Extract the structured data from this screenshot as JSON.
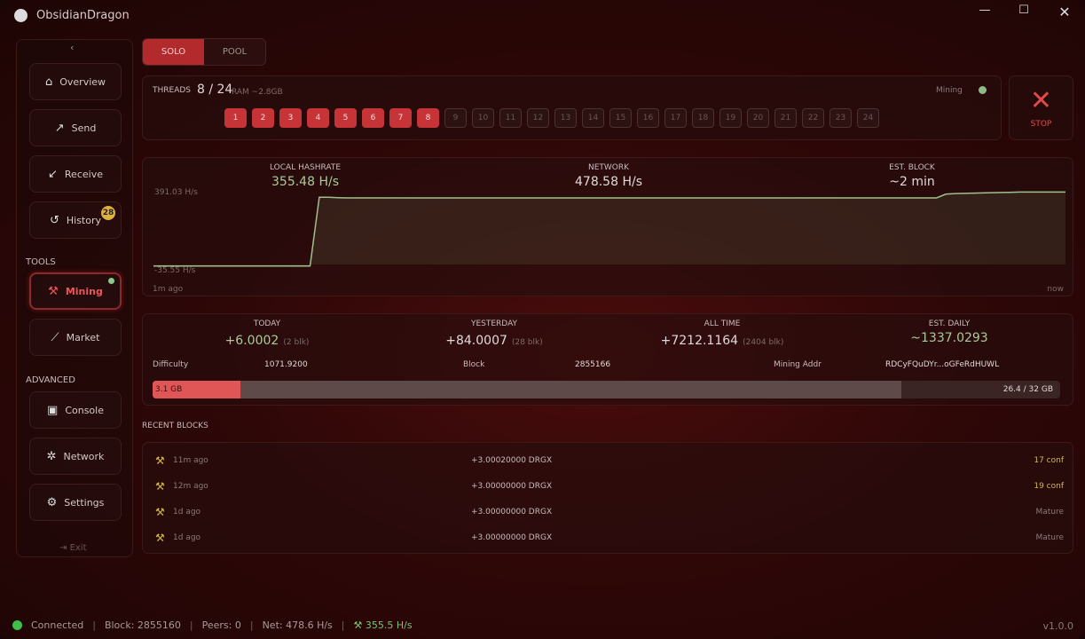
{
  "app": {
    "title": "ObsidianDragon",
    "version": "v1.0.0"
  },
  "sidebar": {
    "items": [
      {
        "label": "Overview",
        "icon": "home-icon"
      },
      {
        "label": "Send",
        "icon": "arrow-up-right-icon"
      },
      {
        "label": "Receive",
        "icon": "arrow-down-left-icon"
      },
      {
        "label": "History",
        "icon": "history-icon",
        "badge": "28"
      },
      {
        "label": "Mining",
        "icon": "pickaxe-icon"
      },
      {
        "label": "Market",
        "icon": "chart-icon"
      },
      {
        "label": "Console",
        "icon": "terminal-icon"
      },
      {
        "label": "Network",
        "icon": "network-icon"
      },
      {
        "label": "Settings",
        "icon": "gear-icon"
      }
    ],
    "tools": "TOOLS",
    "advanced": "ADVANCED",
    "exit": "Exit"
  },
  "mode": {
    "solo": "SOLO",
    "pool": "POOL",
    "selected": "SOLO"
  },
  "threads": {
    "label": "THREADS",
    "value": "8 / 24",
    "ram": "RAM ~2.8GB",
    "active": 8,
    "total": 24,
    "status": "Mining",
    "stop": "STOP"
  },
  "hashrate": {
    "local_label": "LOCAL HASHRATE",
    "local": "355.48 H/s",
    "network_label": "NETWORK",
    "network": "478.58 H/s",
    "block_label": "EST. BLOCK",
    "block": "~2 min",
    "ymax": "391.03 H/s",
    "ymin": "-35.55 H/s",
    "xstart": "1m ago",
    "xend": "now"
  },
  "chart_data": {
    "type": "area",
    "y_range": [
      -35.55,
      391.03
    ],
    "values": [
      0,
      0,
      0,
      0,
      0,
      0,
      0,
      0,
      0,
      0,
      0,
      0,
      0,
      0,
      0,
      0,
      0,
      0,
      330,
      330,
      328,
      327,
      327,
      327,
      327,
      327,
      327,
      327,
      327,
      327,
      327,
      327,
      327,
      327,
      327,
      327,
      327,
      327,
      327,
      327,
      327,
      327,
      327,
      327,
      327,
      327,
      327,
      327,
      327,
      327,
      327,
      327,
      327,
      327,
      327,
      327,
      327,
      327,
      327,
      327,
      327,
      327,
      327,
      327,
      327,
      327,
      327,
      327,
      327,
      327,
      327,
      327,
      327,
      327,
      327,
      327,
      327,
      327,
      327,
      327,
      327,
      327,
      327,
      327,
      327,
      327,
      345,
      348,
      349,
      350,
      351,
      352,
      353,
      354,
      355,
      355,
      355,
      355,
      355,
      355
    ]
  },
  "earnings": {
    "today_label": "TODAY",
    "today": "+6.0002",
    "today_blk": "(2 blk)",
    "yesterday_label": "YESTERDAY",
    "yesterday": "+84.0007",
    "yesterday_blk": "(28 blk)",
    "alltime_label": "ALL TIME",
    "alltime": "+7212.1164",
    "alltime_blk": "(2404 blk)",
    "daily_label": "EST. DAILY",
    "daily": "~1337.0293",
    "difficulty_label": "Difficulty",
    "difficulty": "1071.9200",
    "block_label": "Block",
    "block": "2855166",
    "addr_label": "Mining Addr",
    "addr": "RDCyFQuDYr...oGFeRdHUWL",
    "mem_used": "3.1 GB",
    "mem_total": "26.4 / 32 GB",
    "mem_used_fraction": 0.097,
    "mem_avail_fraction": 0.825
  },
  "recent": {
    "title": "RECENT BLOCKS",
    "rows": [
      {
        "time": "11m ago",
        "amount": "+3.00020000 DRGX",
        "conf": "17 conf",
        "state": "pending"
      },
      {
        "time": "12m ago",
        "amount": "+3.00000000 DRGX",
        "conf": "19 conf",
        "state": "pending"
      },
      {
        "time": "1d ago",
        "amount": "+3.00000000 DRGX",
        "conf": "Mature",
        "state": "mature"
      },
      {
        "time": "1d ago",
        "amount": "+3.00000000 DRGX",
        "conf": "Mature",
        "state": "mature"
      }
    ]
  },
  "status": {
    "connected": "Connected",
    "block": "Block: 2855160",
    "peers": "Peers: 0",
    "net": "Net: 478.6 H/s",
    "hash": "355.5 H/s"
  },
  "colors": {
    "accent": "#c73437",
    "green": "#a8cc98",
    "gold": "#e0b040"
  }
}
